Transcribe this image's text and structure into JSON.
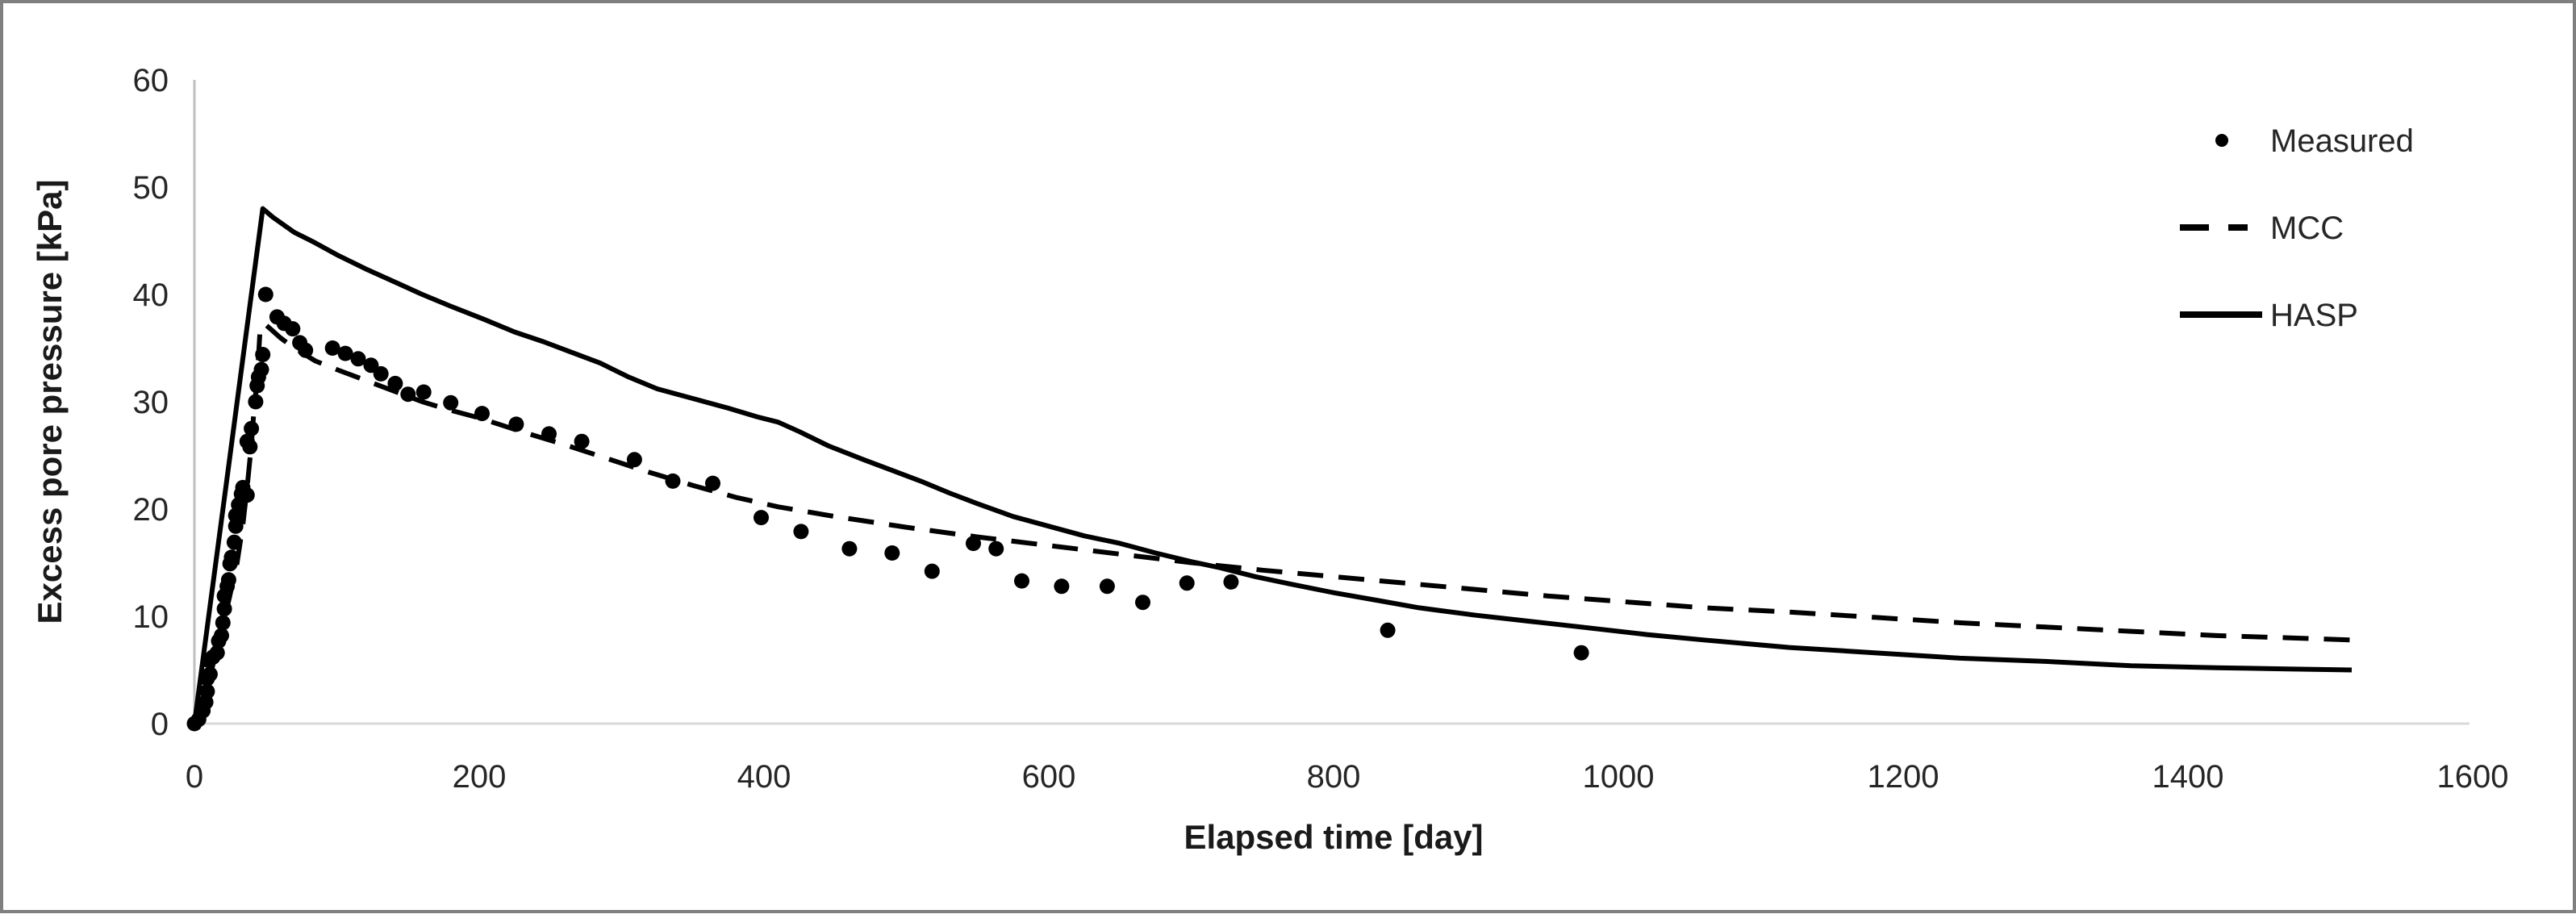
{
  "chart_data": {
    "type": "line",
    "title": "",
    "xlabel": "Elapsed time [day]",
    "ylabel": "Excess pore pressure [kPa]",
    "xlim": [
      0,
      1600
    ],
    "ylim": [
      0,
      60
    ],
    "xticks": [
      0,
      200,
      400,
      600,
      800,
      1000,
      1200,
      1400,
      1600
    ],
    "yticks": [
      0,
      10,
      20,
      30,
      40,
      50,
      60
    ],
    "grid": "baseline-only",
    "legend_position": "top-right-inside",
    "series": [
      {
        "name": "Measured",
        "type": "scatter",
        "marker": "dot",
        "color": "#000000",
        "points": [
          [
            0,
            0
          ],
          [
            3,
            0.4
          ],
          [
            6,
            1.2
          ],
          [
            8,
            2.0
          ],
          [
            9,
            3.0
          ],
          [
            9,
            4.2
          ],
          [
            11,
            4.6
          ],
          [
            10,
            5.9
          ],
          [
            13,
            6.2
          ],
          [
            16,
            6.6
          ],
          [
            17,
            7.7
          ],
          [
            19,
            8.2
          ],
          [
            20,
            9.4
          ],
          [
            21,
            10.7
          ],
          [
            21,
            11.9
          ],
          [
            23,
            12.8
          ],
          [
            24,
            13.4
          ],
          [
            25,
            14.9
          ],
          [
            26,
            15.5
          ],
          [
            28,
            16.9
          ],
          [
            29,
            18.4
          ],
          [
            29,
            19.4
          ],
          [
            31,
            20.4
          ],
          [
            33,
            21.4
          ],
          [
            34,
            22.0
          ],
          [
            37,
            21.3
          ],
          [
            37,
            26.3
          ],
          [
            39,
            25.8
          ],
          [
            40,
            27.5
          ],
          [
            43,
            30.0
          ],
          [
            44,
            31.5
          ],
          [
            45,
            32.3
          ],
          [
            47,
            33.0
          ],
          [
            48,
            34.4
          ],
          [
            50,
            40.0
          ],
          [
            58,
            37.9
          ],
          [
            63,
            37.3
          ],
          [
            69,
            36.8
          ],
          [
            74,
            35.5
          ],
          [
            78,
            34.8
          ],
          [
            97,
            35.0
          ],
          [
            106,
            34.5
          ],
          [
            115,
            34.0
          ],
          [
            124,
            33.4
          ],
          [
            131,
            32.6
          ],
          [
            141,
            31.7
          ],
          [
            150,
            30.7
          ],
          [
            161,
            30.9
          ],
          [
            180,
            29.9
          ],
          [
            202,
            28.9
          ],
          [
            226,
            27.9
          ],
          [
            249,
            27.0
          ],
          [
            272,
            26.3
          ],
          [
            309,
            24.6
          ],
          [
            336,
            22.6
          ],
          [
            364,
            22.4
          ],
          [
            398,
            19.2
          ],
          [
            426,
            17.9
          ],
          [
            460,
            16.3
          ],
          [
            490,
            15.9
          ],
          [
            518,
            14.2
          ],
          [
            547,
            16.8
          ],
          [
            563,
            16.3
          ],
          [
            581,
            13.3
          ],
          [
            609,
            12.8
          ],
          [
            641,
            12.8
          ],
          [
            666,
            11.3
          ],
          [
            697,
            13.1
          ],
          [
            728,
            13.2
          ],
          [
            838,
            8.7
          ],
          [
            974,
            6.6
          ]
        ]
      },
      {
        "name": "MCC",
        "type": "line",
        "marker": "line-dashed",
        "style": "dashed",
        "color": "#000000",
        "points": [
          [
            0,
            0
          ],
          [
            10,
            4
          ],
          [
            18,
            8
          ],
          [
            25,
            12
          ],
          [
            30,
            15
          ],
          [
            34,
            18.5
          ],
          [
            37,
            22
          ],
          [
            40,
            26
          ],
          [
            42,
            29.5
          ],
          [
            44,
            32
          ],
          [
            46,
            36.5
          ],
          [
            49,
            37.3
          ],
          [
            55,
            36.6
          ],
          [
            60,
            36.0
          ],
          [
            70,
            35.0
          ],
          [
            85,
            33.8
          ],
          [
            100,
            33.0
          ],
          [
            120,
            32.0
          ],
          [
            140,
            31.0
          ],
          [
            160,
            30.0
          ],
          [
            180,
            29.2
          ],
          [
            200,
            28.5
          ],
          [
            230,
            27.2
          ],
          [
            260,
            26.0
          ],
          [
            290,
            24.7
          ],
          [
            320,
            23.4
          ],
          [
            350,
            22.2
          ],
          [
            380,
            21.1
          ],
          [
            410,
            20.2
          ],
          [
            450,
            19.3
          ],
          [
            500,
            18.3
          ],
          [
            550,
            17.4
          ],
          [
            600,
            16.6
          ],
          [
            650,
            15.8
          ],
          [
            700,
            15.0
          ],
          [
            750,
            14.3
          ],
          [
            800,
            13.7
          ],
          [
            850,
            13.1
          ],
          [
            900,
            12.5
          ],
          [
            950,
            11.9
          ],
          [
            1000,
            11.4
          ],
          [
            1060,
            10.8
          ],
          [
            1120,
            10.4
          ],
          [
            1180,
            9.9
          ],
          [
            1240,
            9.4
          ],
          [
            1300,
            9.0
          ],
          [
            1360,
            8.6
          ],
          [
            1420,
            8.2
          ],
          [
            1470,
            8.0
          ],
          [
            1515,
            7.8
          ]
        ]
      },
      {
        "name": "HASP",
        "type": "line",
        "marker": "line-solid",
        "style": "solid",
        "color": "#000000",
        "points": [
          [
            0,
            0
          ],
          [
            12,
            12
          ],
          [
            24,
            24
          ],
          [
            36,
            36
          ],
          [
            48,
            48
          ],
          [
            55,
            47.2
          ],
          [
            70,
            45.8
          ],
          [
            85,
            44.8
          ],
          [
            100,
            43.7
          ],
          [
            120,
            42.4
          ],
          [
            140,
            41.2
          ],
          [
            160,
            40.0
          ],
          [
            180,
            38.9
          ],
          [
            203,
            37.7
          ],
          [
            225,
            36.5
          ],
          [
            245,
            35.6
          ],
          [
            265,
            34.6
          ],
          [
            285,
            33.6
          ],
          [
            305,
            32.3
          ],
          [
            325,
            31.2
          ],
          [
            350,
            30.3
          ],
          [
            375,
            29.4
          ],
          [
            395,
            28.6
          ],
          [
            410,
            28.1
          ],
          [
            425,
            27.2
          ],
          [
            445,
            25.9
          ],
          [
            470,
            24.6
          ],
          [
            490,
            23.6
          ],
          [
            510,
            22.6
          ],
          [
            530,
            21.5
          ],
          [
            550,
            20.5
          ],
          [
            575,
            19.3
          ],
          [
            600,
            18.4
          ],
          [
            625,
            17.5
          ],
          [
            650,
            16.8
          ],
          [
            675,
            15.9
          ],
          [
            700,
            15.1
          ],
          [
            721,
            14.5
          ],
          [
            745,
            13.7
          ],
          [
            770,
            13.0
          ],
          [
            800,
            12.2
          ],
          [
            830,
            11.5
          ],
          [
            860,
            10.8
          ],
          [
            900,
            10.1
          ],
          [
            940,
            9.5
          ],
          [
            974,
            9.0
          ],
          [
            1020,
            8.3
          ],
          [
            1060,
            7.8
          ],
          [
            1120,
            7.1
          ],
          [
            1180,
            6.6
          ],
          [
            1240,
            6.1
          ],
          [
            1300,
            5.8
          ],
          [
            1360,
            5.4
          ],
          [
            1420,
            5.2
          ],
          [
            1470,
            5.1
          ],
          [
            1515,
            5.0
          ]
        ]
      }
    ]
  },
  "legend": {
    "items": [
      {
        "label": "Measured",
        "marker": "dot"
      },
      {
        "label": "MCC",
        "marker": "line-dashed"
      },
      {
        "label": "HASP",
        "marker": "line-solid"
      }
    ]
  },
  "colors": {
    "series": "#000000",
    "tick_label": "#262626",
    "axis_title": "#1a1a1a",
    "legend_text": "#262626",
    "axis_line": "#bfbfbf",
    "baseline_gridline": "#d9d9d9",
    "frame_border": "#7f7f7f",
    "background": "#ffffff"
  }
}
